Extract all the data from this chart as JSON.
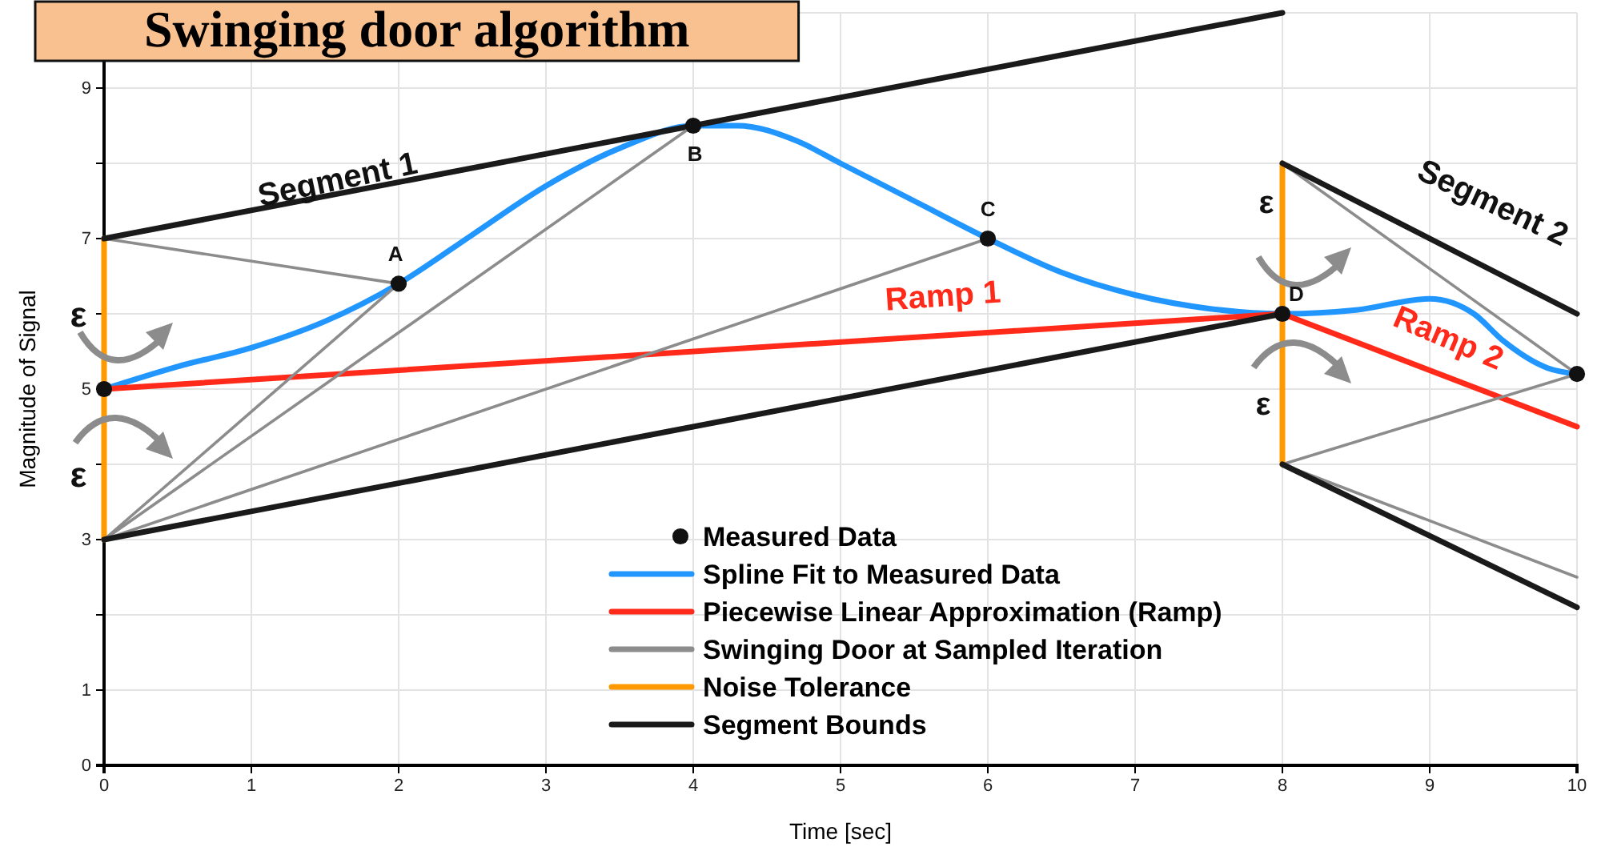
{
  "chart_data": {
    "type": "line",
    "title": "Swinging door algorithm",
    "xlabel": "Time [sec]",
    "ylabel": "Magnitude of Signal",
    "xlim": [
      0,
      10
    ],
    "ylim": [
      0,
      10
    ],
    "xticks": [
      0,
      1,
      2,
      3,
      4,
      5,
      6,
      7,
      8,
      9,
      10
    ],
    "yticks": [
      0,
      1,
      {
        "value": 2,
        "label": null
      },
      3,
      {
        "value": 4,
        "label": null
      },
      5,
      {
        "value": 6,
        "label": null
      },
      7,
      {
        "value": 8,
        "label": null
      },
      9,
      {
        "value": 10,
        "label": null
      }
    ],
    "grid": true,
    "legend": "bottom",
    "series": [
      {
        "name": "Measured Data",
        "type": "scatter",
        "marker": "circle",
        "color": "#111111",
        "x": [
          0,
          2,
          4,
          6,
          8,
          10
        ],
        "values": [
          5,
          6.4,
          8.5,
          7,
          6,
          5.2
        ]
      },
      {
        "name": "Spline Fit to Measured Data",
        "color": "#2196ff",
        "x": [
          0,
          0.5,
          1,
          1.5,
          2,
          2.5,
          3,
          3.5,
          4,
          4.3,
          4.7,
          5,
          5.5,
          6,
          6.5,
          7,
          7.5,
          8,
          8.5,
          9,
          9.3,
          9.5,
          9.8,
          10
        ],
        "values": [
          5,
          5.3,
          5.55,
          5.9,
          6.4,
          7.05,
          7.7,
          8.2,
          8.5,
          8.5,
          8.3,
          8,
          7.5,
          7,
          6.55,
          6.25,
          6.07,
          6,
          6.05,
          6.2,
          6,
          5.64,
          5.28,
          5.2
        ]
      },
      {
        "name": "Piecewise Linear Approximation (Ramp)",
        "color": "#ff2a1a",
        "x": [
          0,
          8,
          10
        ],
        "values": [
          5,
          6,
          4.5
        ]
      },
      {
        "name": "Swinging Door at Sampled Iteration",
        "color": "#8c8c8c",
        "x": [
          0,
          2
        ],
        "values": [
          7,
          6.4
        ]
      },
      {
        "name": "Noise Tolerance",
        "color": "#ff9900",
        "x": [
          0,
          0
        ],
        "values": [
          3,
          7
        ]
      },
      {
        "name": "Segment Bounds",
        "color": "#1a1a1a",
        "x": [
          0,
          8
        ],
        "values": [
          7,
          10
        ]
      },
      {
        "color": "#8c8c8c",
        "x": [
          0,
          2
        ],
        "values": [
          3,
          6.4
        ]
      },
      {
        "color": "#8c8c8c",
        "x": [
          0,
          4
        ],
        "values": [
          3,
          8.5
        ]
      },
      {
        "color": "#8c8c8c",
        "x": [
          0,
          6
        ],
        "values": [
          3,
          7
        ]
      },
      {
        "color": "#8c8c8c",
        "x": [
          8,
          10
        ],
        "values": [
          8,
          5.2
        ]
      },
      {
        "color": "#8c8c8c",
        "x": [
          8,
          10
        ],
        "values": [
          4,
          5.2
        ]
      },
      {
        "color": "#8c8c8c",
        "x": [
          8,
          10
        ],
        "values": [
          4,
          2.5
        ]
      },
      {
        "color": "#ff9900",
        "x": [
          8,
          8
        ],
        "values": [
          4,
          8
        ]
      },
      {
        "color": "#1a1a1a",
        "x": [
          0,
          8
        ],
        "values": [
          3,
          6
        ]
      },
      {
        "color": "#1a1a1a",
        "x": [
          8,
          10
        ],
        "values": [
          8,
          6
        ]
      },
      {
        "color": "#1a1a1a",
        "x": [
          8,
          10
        ],
        "values": [
          4,
          2.1
        ]
      }
    ],
    "annotations": [
      "Segment 1",
      "Segment 2",
      "Ramp 1",
      "Ramp 2",
      {
        "text": "A",
        "x": 2,
        "y": 6.4
      },
      {
        "text": "B",
        "x": 4,
        "y": 8.5
      },
      {
        "text": "C",
        "x": 6,
        "y": 7
      },
      {
        "text": "D",
        "x": 8,
        "y": 6
      },
      {
        "text": "ε",
        "x": 0,
        "y": 6
      },
      {
        "text": "ε",
        "x": 0,
        "y": 4
      },
      {
        "text": "ε",
        "x": 8,
        "y": 7
      },
      {
        "text": "ε",
        "x": 8,
        "y": 5
      }
    ]
  }
}
